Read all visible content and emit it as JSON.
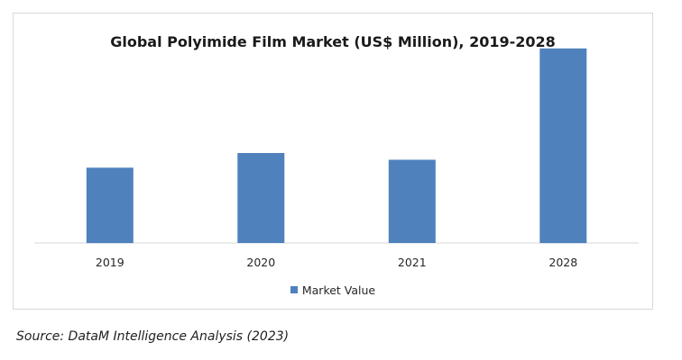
{
  "chart_data": {
    "type": "bar",
    "title": "Global Polyimide Film Market (US$ Million), 2019-2028",
    "xlabel": "",
    "ylabel": "",
    "categories": [
      "2019",
      "2020",
      "2021",
      "2028"
    ],
    "series": [
      {
        "name": "Market Value",
        "values": [
          67,
          80,
          74,
          173
        ]
      }
    ],
    "ylim": [
      0,
      180
    ],
    "grid": false,
    "legend_position": "bottom",
    "colors": {
      "bar": "#4f81bd",
      "axis": "#d9d9d9"
    }
  },
  "source": "Source: DataM Intelligence Analysis (2023)"
}
